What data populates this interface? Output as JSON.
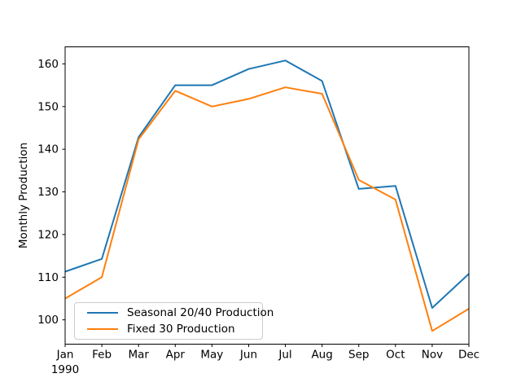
{
  "chart_data": {
    "type": "line",
    "title": "",
    "xlabel": "",
    "ylabel": "Monthly Production",
    "x_axis_sub_label": "1990",
    "categories": [
      "Jan",
      "Feb",
      "Mar",
      "Apr",
      "May",
      "Jun",
      "Jul",
      "Aug",
      "Sep",
      "Oct",
      "Nov",
      "Dec"
    ],
    "series": [
      {
        "name": "Seasonal 20/40 Production",
        "color": "#1f77b4",
        "values": [
          111.3,
          114.3,
          142.8,
          155.0,
          155.0,
          158.8,
          160.8,
          156.0,
          130.7,
          131.4,
          102.8,
          110.8
        ]
      },
      {
        "name": "Fixed 30 Production",
        "color": "#ff7f0e",
        "values": [
          105.0,
          110.0,
          142.3,
          153.7,
          150.0,
          151.8,
          154.5,
          153.0,
          132.8,
          128.2,
          97.4,
          102.6
        ]
      }
    ],
    "yticks": [
      100,
      110,
      120,
      130,
      140,
      150,
      160
    ],
    "ylim": [
      94.3,
      164.0
    ],
    "grid": false,
    "legend_position": "lower left"
  }
}
